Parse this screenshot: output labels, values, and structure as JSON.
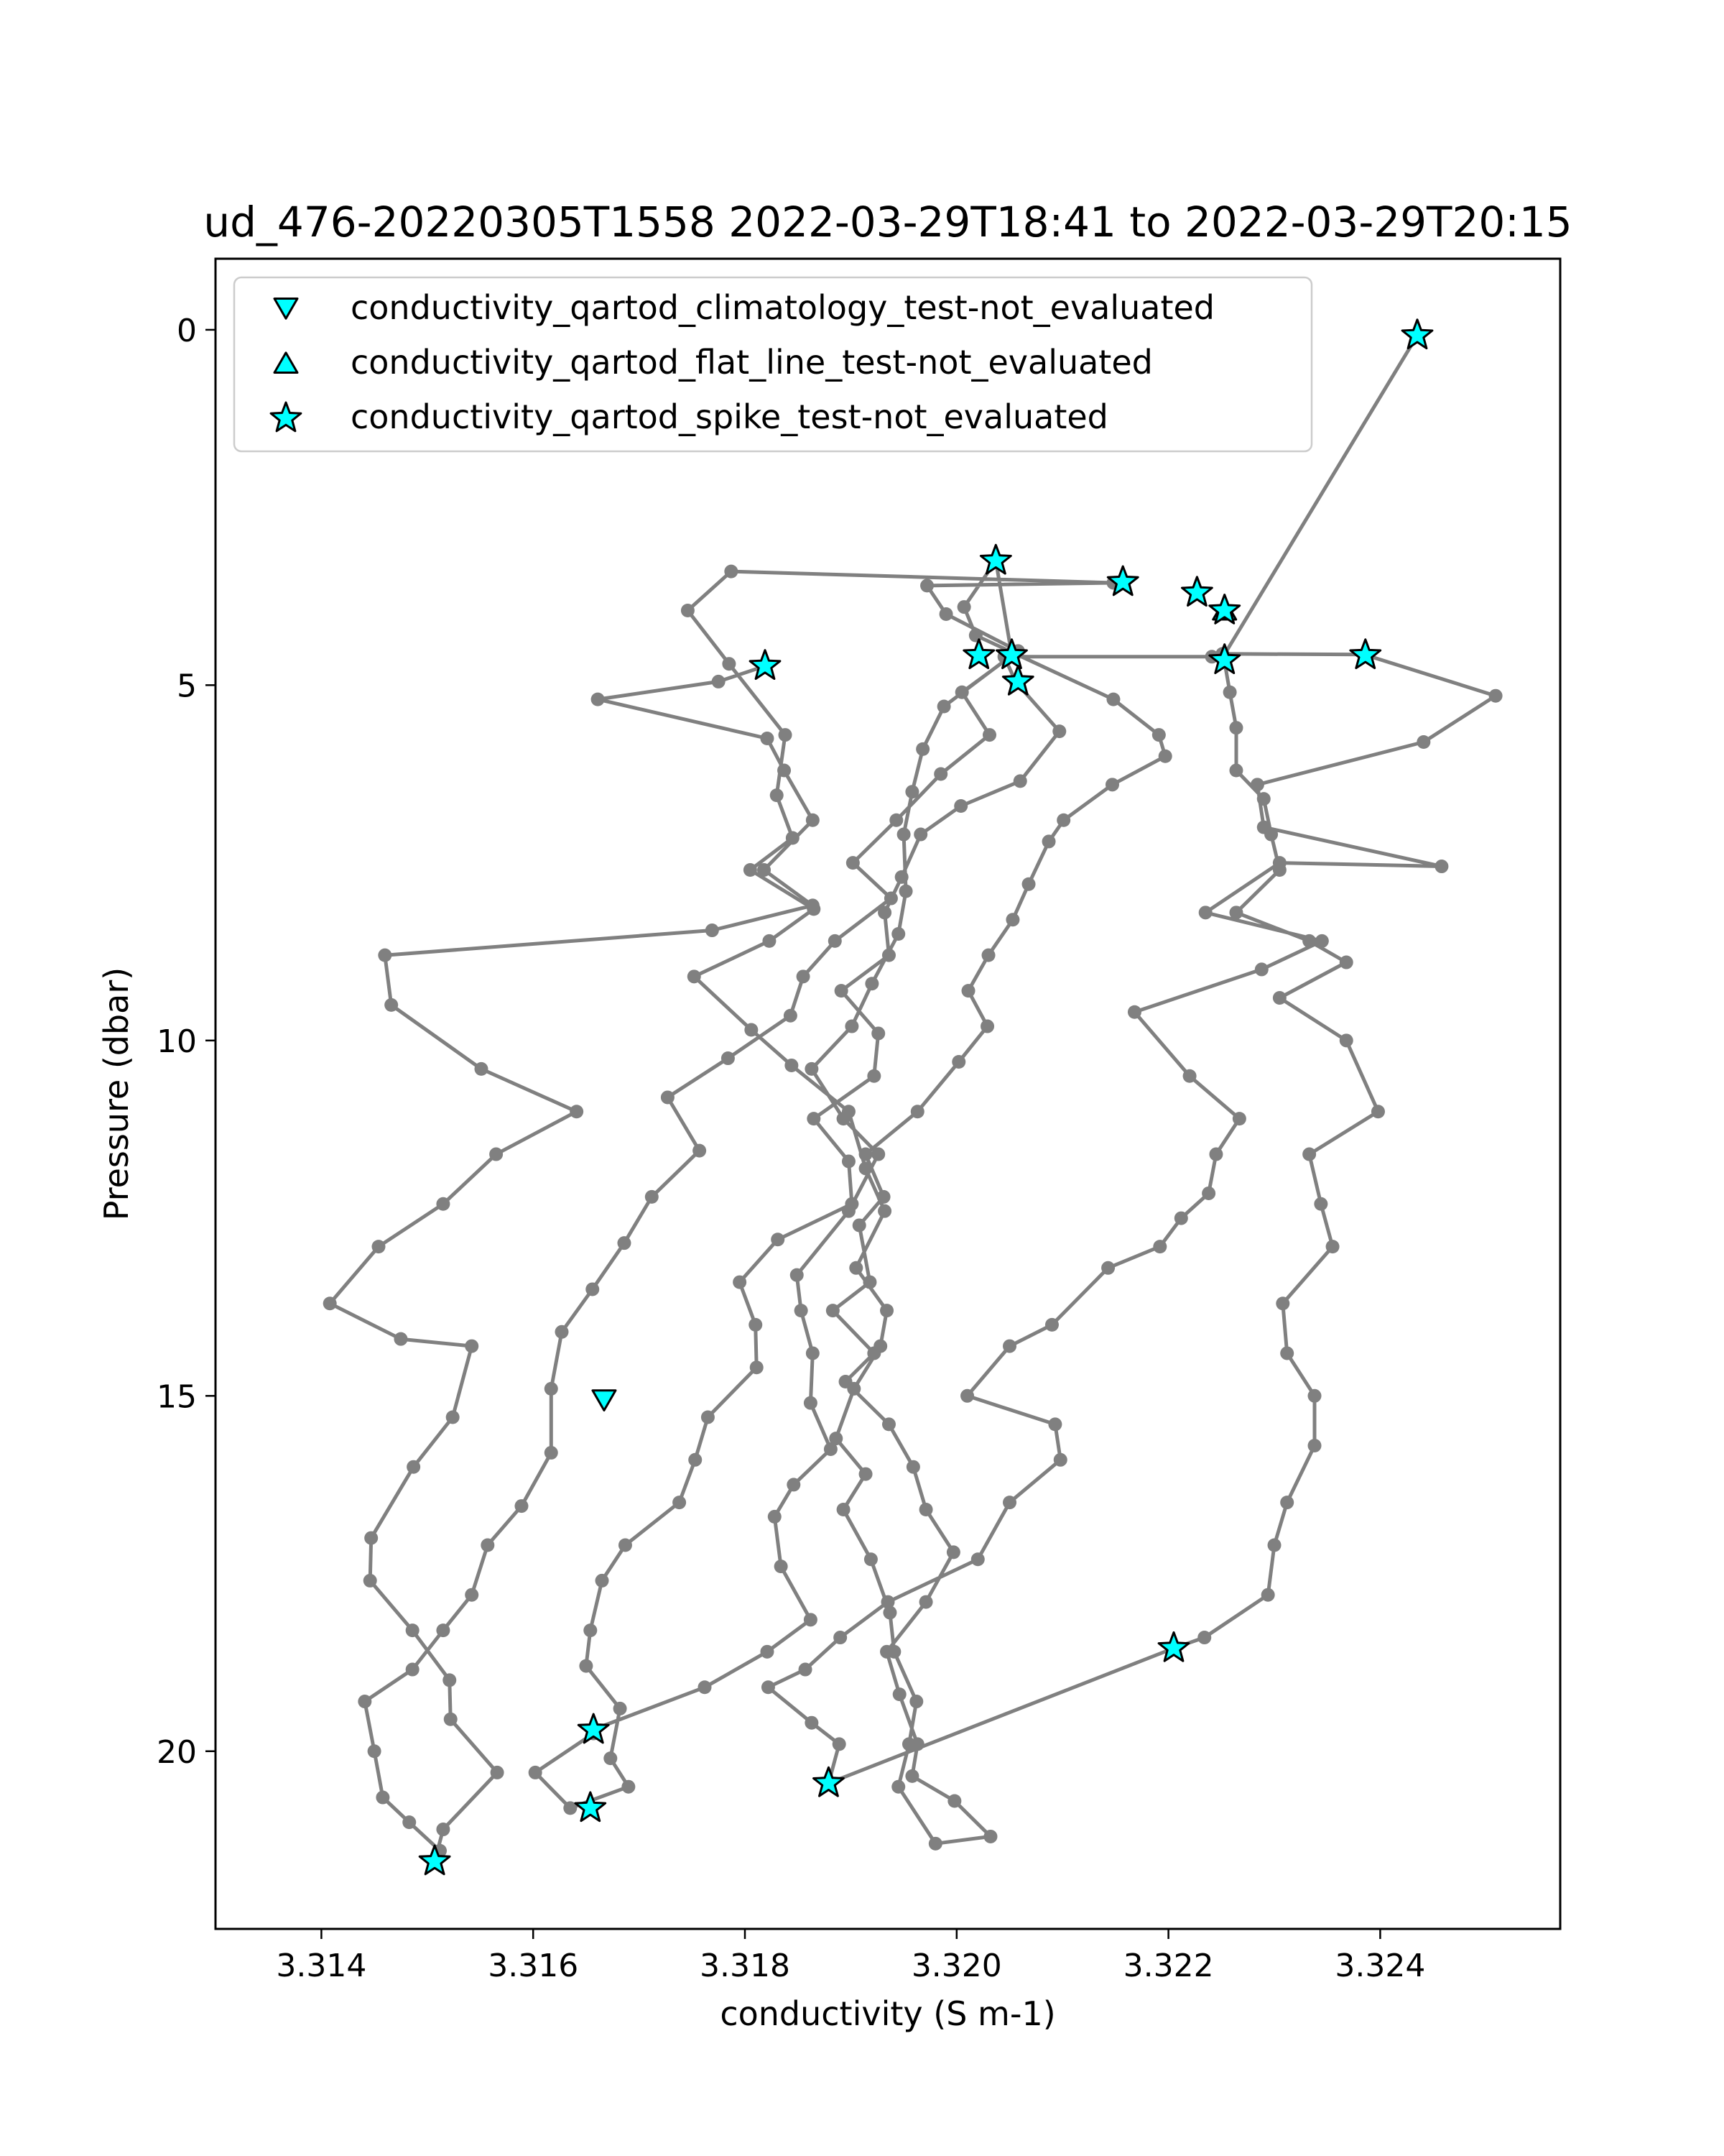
{
  "chart_data": {
    "type": "line",
    "title": "ud_476-20220305T1558 2022-03-29T18:41 to 2022-03-29T20:15",
    "xlabel": "conductivity (S m-1)",
    "ylabel": "Pressure (dbar)",
    "xlim": [
      3.313,
      3.3257
    ],
    "ylim": [
      22.5,
      -1.0
    ],
    "y_inverted": true,
    "grid": false,
    "legend_placement": "upper-left",
    "x_ticks": [
      3.314,
      3.316,
      3.318,
      3.32,
      3.322,
      3.324
    ],
    "x_tick_labels": [
      "3.314",
      "3.316",
      "3.318",
      "3.320",
      "3.322",
      "3.324"
    ],
    "y_ticks": [
      0,
      5,
      10,
      15,
      20
    ],
    "y_tick_labels": [
      "0",
      "5",
      "10",
      "15",
      "20"
    ],
    "colors": {
      "profile_line": "#808080",
      "flag_fill": "#00ffff",
      "flag_edge": "#000000"
    },
    "profile": {
      "name": "conductivity",
      "points": [
        [
          3.32435,
          0.08
        ],
        [
          3.32252,
          4.59
        ],
        [
          3.32258,
          5.1
        ],
        [
          3.32264,
          5.6
        ],
        [
          3.32264,
          6.2
        ],
        [
          3.3229,
          6.6
        ],
        [
          3.32297,
          7.1
        ],
        [
          3.32305,
          7.6
        ],
        [
          3.32264,
          8.2
        ],
        [
          3.32333,
          8.6
        ],
        [
          3.32368,
          8.9
        ],
        [
          3.32305,
          9.4
        ],
        [
          3.32368,
          10.0
        ],
        [
          3.32398,
          11.0
        ],
        [
          3.32333,
          11.6
        ],
        [
          3.32344,
          12.3
        ],
        [
          3.32355,
          12.9
        ],
        [
          3.32308,
          13.7
        ],
        [
          3.32312,
          14.4
        ],
        [
          3.32338,
          15.0
        ],
        [
          3.32338,
          15.7
        ],
        [
          3.32312,
          16.5
        ],
        [
          3.323,
          17.1
        ],
        [
          3.32294,
          17.8
        ],
        [
          3.32234,
          18.4
        ],
        [
          3.32205,
          18.55
        ],
        [
          3.31879,
          20.45
        ],
        [
          3.31889,
          19.9
        ],
        [
          3.31863,
          19.6
        ],
        [
          3.31822,
          19.1
        ],
        [
          3.31857,
          18.85
        ],
        [
          3.3189,
          18.4
        ],
        [
          3.31935,
          17.9
        ],
        [
          3.3202,
          17.3
        ],
        [
          3.3205,
          16.5
        ],
        [
          3.32098,
          15.9
        ],
        [
          3.32093,
          15.4
        ],
        [
          3.3201,
          15.0
        ],
        [
          3.3205,
          14.3
        ],
        [
          3.3209,
          14.0
        ],
        [
          3.32143,
          13.2
        ],
        [
          3.32192,
          12.9
        ],
        [
          3.32212,
          12.5
        ],
        [
          3.32238,
          12.15
        ],
        [
          3.32245,
          11.6
        ],
        [
          3.32267,
          11.1
        ],
        [
          3.3222,
          10.5
        ],
        [
          3.32168,
          9.6
        ],
        [
          3.32288,
          9.0
        ],
        [
          3.32345,
          8.6
        ],
        [
          3.32235,
          8.2
        ],
        [
          3.32305,
          7.5
        ],
        [
          3.32458,
          7.55
        ],
        [
          3.3229,
          7.0
        ],
        [
          3.32284,
          6.4
        ],
        [
          3.32441,
          5.8
        ],
        [
          3.32509,
          5.15
        ],
        [
          3.32385,
          4.57
        ],
        [
          3.32251,
          4.56
        ],
        [
          3.32241,
          4.6
        ],
        [
          3.32045,
          4.6
        ],
        [
          3.32056,
          4.96
        ],
        [
          3.32097,
          5.65
        ],
        [
          3.3206,
          6.35
        ],
        [
          3.32004,
          6.7
        ],
        [
          3.31966,
          7.1
        ],
        [
          3.31948,
          7.7
        ],
        [
          3.31932,
          8.2
        ],
        [
          3.31936,
          8.8
        ],
        [
          3.31891,
          9.3
        ],
        [
          3.31926,
          9.9
        ],
        [
          3.31922,
          10.5
        ],
        [
          3.31865,
          11.1
        ],
        [
          3.31898,
          11.7
        ],
        [
          3.31901,
          12.3
        ],
        [
          3.31831,
          12.8
        ],
        [
          3.31795,
          13.4
        ],
        [
          3.3181,
          14.0
        ],
        [
          3.31811,
          14.6
        ],
        [
          3.31765,
          15.3
        ],
        [
          3.31753,
          15.9
        ],
        [
          3.31738,
          16.5
        ],
        [
          3.31687,
          17.1
        ],
        [
          3.31665,
          17.6
        ],
        [
          3.31654,
          18.3
        ],
        [
          3.3165,
          18.8
        ],
        [
          3.31682,
          19.4
        ],
        [
          3.31673,
          20.1
        ],
        [
          3.3169,
          20.5
        ],
        [
          3.31635,
          20.8
        ],
        [
          3.31602,
          20.3
        ],
        [
          3.31657,
          19.75
        ],
        [
          3.31656,
          19.7
        ],
        [
          3.31762,
          19.1
        ],
        [
          3.31821,
          18.6
        ],
        [
          3.31862,
          18.15
        ],
        [
          3.31834,
          17.4
        ],
        [
          3.31828,
          16.7
        ],
        [
          3.31846,
          16.25
        ],
        [
          3.31881,
          15.75
        ],
        [
          3.31862,
          15.1
        ],
        [
          3.31864,
          14.4
        ],
        [
          3.31853,
          13.8
        ],
        [
          3.31849,
          13.3
        ],
        [
          3.31898,
          12.4
        ],
        [
          3.31926,
          11.6
        ],
        [
          3.31893,
          11.1
        ],
        [
          3.31863,
          10.4
        ],
        [
          3.31901,
          9.8
        ],
        [
          3.3192,
          9.2
        ],
        [
          3.31945,
          8.5
        ],
        [
          3.31952,
          7.9
        ],
        [
          3.3195,
          7.1
        ],
        [
          3.31958,
          6.5
        ],
        [
          3.31968,
          5.9
        ],
        [
          3.31988,
          5.3
        ],
        [
          3.32052,
          4.58
        ],
        [
          3.32037,
          3.25
        ],
        [
          3.32007,
          3.9
        ],
        [
          3.32018,
          4.3
        ],
        [
          3.32148,
          5.2
        ],
        [
          3.32191,
          5.7
        ],
        [
          3.32197,
          6.0
        ],
        [
          3.32147,
          6.4
        ],
        [
          3.32101,
          6.9
        ],
        [
          3.32087,
          7.2
        ],
        [
          3.32068,
          7.8
        ],
        [
          3.32053,
          8.3
        ],
        [
          3.3203,
          8.8
        ],
        [
          3.32011,
          9.3
        ],
        [
          3.32029,
          9.8
        ],
        [
          3.32002,
          10.3
        ],
        [
          3.31963,
          11.0
        ],
        [
          3.31914,
          11.6
        ],
        [
          3.31931,
          12.2
        ],
        [
          3.31908,
          12.6
        ],
        [
          3.31918,
          13.4
        ],
        [
          3.31883,
          13.8
        ],
        [
          3.31922,
          14.4
        ],
        [
          3.31895,
          14.8
        ],
        [
          3.31936,
          15.4
        ],
        [
          3.31959,
          16.0
        ],
        [
          3.31971,
          16.6
        ],
        [
          3.31997,
          17.2
        ],
        [
          3.31971,
          17.9
        ],
        [
          3.31934,
          18.6
        ],
        [
          3.31946,
          19.2
        ],
        [
          3.31963,
          19.9
        ],
        [
          3.31958,
          20.35
        ],
        [
          3.31998,
          20.7
        ],
        [
          3.32032,
          21.2
        ],
        [
          3.3198,
          21.3
        ],
        [
          3.31945,
          20.5
        ],
        [
          3.31955,
          19.9
        ],
        [
          3.31962,
          19.3
        ],
        [
          3.31941,
          18.6
        ],
        [
          3.31937,
          18.05
        ],
        [
          3.31919,
          17.3
        ],
        [
          3.31893,
          16.6
        ],
        [
          3.31914,
          16.1
        ],
        [
          3.31886,
          15.6
        ],
        [
          3.31903,
          14.9
        ],
        [
          3.31928,
          14.3
        ],
        [
          3.31934,
          13.8
        ],
        [
          3.31905,
          13.2
        ],
        [
          3.31932,
          12.4
        ],
        [
          3.31914,
          11.8
        ],
        [
          3.31898,
          11.0
        ],
        [
          3.31844,
          10.35
        ],
        [
          3.31806,
          9.85
        ],
        [
          3.31752,
          9.1
        ],
        [
          3.31823,
          8.6
        ],
        [
          3.31865,
          8.15
        ],
        [
          3.31805,
          7.6
        ],
        [
          3.31845,
          7.15
        ],
        [
          3.3183,
          6.55
        ],
        [
          3.31838,
          5.7
        ],
        [
          3.31785,
          4.7
        ],
        [
          3.31746,
          3.95
        ],
        [
          3.31787,
          3.4
        ],
        [
          3.32148,
          3.56
        ],
        [
          3.31972,
          3.6
        ],
        [
          3.3199,
          4.0
        ],
        [
          3.32058,
          4.52
        ],
        [
          3.32005,
          5.1
        ],
        [
          3.32031,
          5.7
        ],
        [
          3.31985,
          6.25
        ],
        [
          3.31943,
          6.9
        ],
        [
          3.31902,
          7.5
        ],
        [
          3.31938,
          8.0
        ],
        [
          3.31885,
          8.6
        ],
        [
          3.31855,
          9.1
        ],
        [
          3.31843,
          9.65
        ],
        [
          3.31784,
          10.25
        ],
        [
          3.31727,
          10.8
        ],
        [
          3.31757,
          11.55
        ],
        [
          3.31712,
          12.2
        ],
        [
          3.31686,
          12.85
        ],
        [
          3.31656,
          13.5
        ],
        [
          3.31627,
          14.1
        ],
        [
          3.31617,
          14.9
        ],
        [
          3.31617,
          15.8
        ],
        [
          3.31589,
          16.55
        ],
        [
          3.31557,
          17.1
        ],
        [
          3.31542,
          17.8
        ],
        [
          3.31515,
          18.3
        ],
        [
          3.31486,
          18.85
        ],
        [
          3.31441,
          19.3
        ],
        [
          3.3145,
          20.0
        ],
        [
          3.31458,
          20.65
        ],
        [
          3.31483,
          21.0
        ],
        [
          3.31512,
          21.4
        ],
        [
          3.31507,
          21.55
        ],
        [
          3.31515,
          21.1
        ],
        [
          3.31566,
          20.3
        ],
        [
          3.31522,
          19.55
        ],
        [
          3.31521,
          19.0
        ],
        [
          3.31486,
          18.3
        ],
        [
          3.31446,
          17.6
        ],
        [
          3.31447,
          17.0
        ],
        [
          3.31487,
          16.0
        ],
        [
          3.31524,
          15.3
        ],
        [
          3.31542,
          14.3
        ],
        [
          3.31475,
          14.2
        ],
        [
          3.31408,
          13.7
        ],
        [
          3.31454,
          12.9
        ],
        [
          3.31515,
          12.3
        ],
        [
          3.31565,
          11.6
        ],
        [
          3.31641,
          11.0
        ],
        [
          3.31551,
          10.4
        ],
        [
          3.31466,
          9.5
        ],
        [
          3.3146,
          8.8
        ],
        [
          3.31769,
          8.45
        ],
        [
          3.31864,
          8.1
        ],
        [
          3.31818,
          7.6
        ],
        [
          3.31864,
          6.9
        ],
        [
          3.31837,
          6.2
        ],
        [
          3.31821,
          5.75
        ],
        [
          3.31661,
          5.2
        ],
        [
          3.31775,
          4.95
        ],
        [
          3.31819,
          4.73
        ]
      ]
    },
    "flags": {
      "climatology": {
        "label": "conductivity_qartod_climatology_test-not_evaluated",
        "marker": "triangle-down",
        "points": [
          [
            3.31667,
            15.05
          ]
        ]
      },
      "flat_line": {
        "label": "conductivity_qartod_flat_line_test-not_evaluated",
        "marker": "triangle-up",
        "points": [
          [
            3.32253,
            3.95
          ]
        ]
      },
      "spike": {
        "label": "conductivity_qartod_spike_test-not_evaluated",
        "marker": "star",
        "points": [
          [
            3.32435,
            0.08
          ],
          [
            3.32037,
            3.25
          ],
          [
            3.32157,
            3.55
          ],
          [
            3.32227,
            3.7
          ],
          [
            3.32253,
            3.95
          ],
          [
            3.32021,
            4.58
          ],
          [
            3.32052,
            4.58
          ],
          [
            3.32253,
            4.65
          ],
          [
            3.32386,
            4.58
          ],
          [
            3.31819,
            4.73
          ],
          [
            3.32058,
            4.95
          ],
          [
            3.32205,
            18.55
          ],
          [
            3.31657,
            19.7
          ],
          [
            3.31654,
            20.8
          ],
          [
            3.31879,
            20.45
          ],
          [
            3.31507,
            21.55
          ]
        ]
      }
    }
  }
}
